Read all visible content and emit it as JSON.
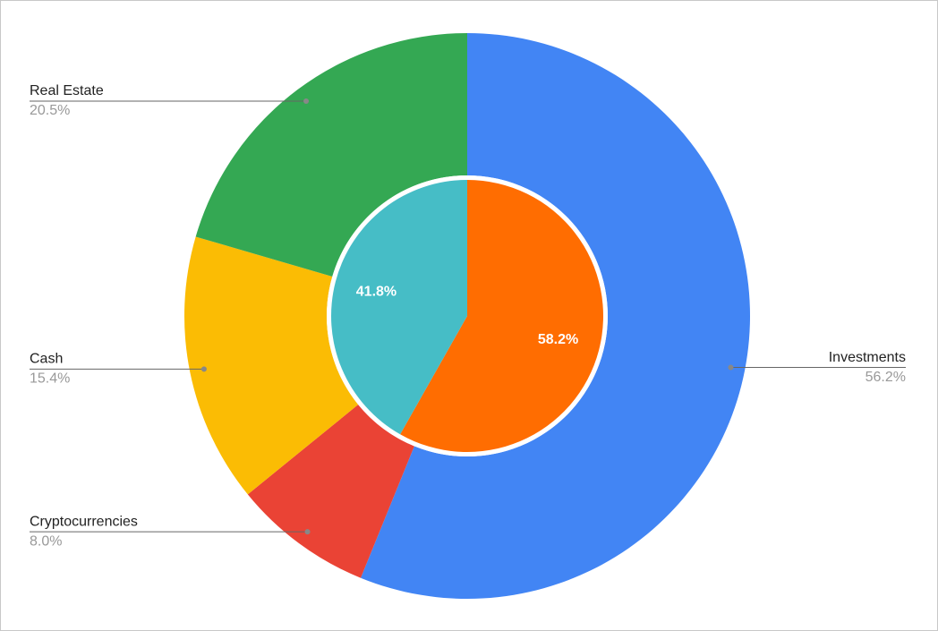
{
  "chart_data": {
    "type": "pie",
    "series": [
      {
        "categories": [
          "Investments",
          "Cryptocurrencies",
          "Cash",
          "Real Estate"
        ],
        "values": [
          56.2,
          8.0,
          15.4,
          20.5
        ],
        "value_labels": [
          "56.2%",
          "8.0%",
          "15.4%",
          "20.5%"
        ],
        "colors": [
          "#4285f4",
          "#ea4335",
          "#fbbc04",
          "#34a853"
        ]
      },
      {
        "values": [
          58.2,
          41.8
        ],
        "value_labels": [
          "58.2%",
          "41.8%"
        ],
        "colors": [
          "#ff6d01",
          "#46bdc6"
        ]
      }
    ]
  }
}
